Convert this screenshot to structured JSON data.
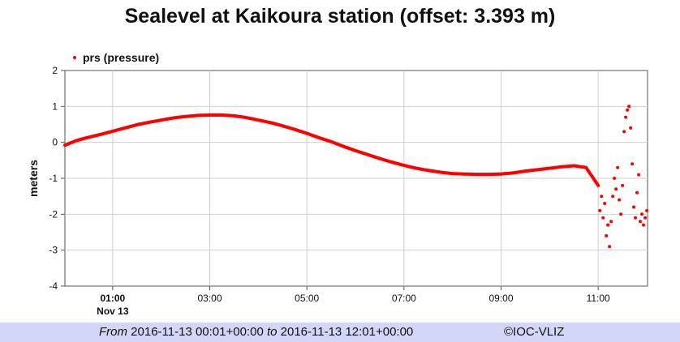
{
  "chart_data": {
    "type": "scatter",
    "title": "Sealevel at Kaikoura station (offset: 3.393 m)",
    "ylabel": "meters",
    "xlabel": "",
    "legend": {
      "label": "prs (pressure)",
      "position": "top-left"
    },
    "series_color": "#ff0000",
    "grid": true,
    "ylim": [
      -4,
      2
    ],
    "xlim": [
      "2016-11-13 00:01",
      "2016-11-13 12:01"
    ],
    "y_ticks": [
      "2",
      "1",
      "0",
      "-1",
      "-2",
      "-3",
      "-4"
    ],
    "x_ticks": [
      {
        "time": "01:00",
        "sub": "Nov 13",
        "bold": true
      },
      {
        "time": "03:00",
        "sub": "",
        "bold": false
      },
      {
        "time": "05:00",
        "sub": "",
        "bold": false
      },
      {
        "time": "07:00",
        "sub": "",
        "bold": false
      },
      {
        "time": "09:00",
        "sub": "",
        "bold": false
      },
      {
        "time": "11:00",
        "sub": "",
        "bold": false
      }
    ],
    "series": [
      {
        "name": "prs (pressure)",
        "x": [
          "00:01",
          "00:15",
          "00:30",
          "00:45",
          "01:00",
          "01:15",
          "01:30",
          "01:45",
          "02:00",
          "02:15",
          "02:30",
          "02:45",
          "03:00",
          "03:15",
          "03:30",
          "03:45",
          "04:00",
          "04:15",
          "04:30",
          "04:45",
          "05:00",
          "05:15",
          "05:30",
          "05:45",
          "06:00",
          "06:15",
          "06:30",
          "06:45",
          "07:00",
          "07:15",
          "07:30",
          "07:45",
          "08:00",
          "08:15",
          "08:30",
          "08:45",
          "09:00",
          "09:15",
          "09:30",
          "09:45",
          "10:00",
          "10:15",
          "10:30",
          "10:45",
          "11:00",
          "11:02",
          "11:04",
          "11:06",
          "11:08",
          "11:10",
          "11:12",
          "11:14",
          "11:16",
          "11:18",
          "11:20",
          "11:22",
          "11:24",
          "11:26",
          "11:28",
          "11:30",
          "11:32",
          "11:34",
          "11:36",
          "11:38",
          "11:40",
          "11:42",
          "11:44",
          "11:46",
          "11:48",
          "11:50",
          "11:52",
          "11:54",
          "11:56",
          "11:58",
          "12:00"
        ],
        "y": [
          -0.08,
          0.05,
          0.14,
          0.22,
          0.31,
          0.4,
          0.49,
          0.56,
          0.62,
          0.68,
          0.72,
          0.75,
          0.76,
          0.76,
          0.74,
          0.69,
          0.62,
          0.55,
          0.46,
          0.36,
          0.25,
          0.13,
          0.02,
          -0.11,
          -0.23,
          -0.34,
          -0.45,
          -0.55,
          -0.64,
          -0.72,
          -0.78,
          -0.83,
          -0.87,
          -0.88,
          -0.89,
          -0.89,
          -0.88,
          -0.85,
          -0.8,
          -0.76,
          -0.72,
          -0.68,
          -0.65,
          -0.7,
          -1.2,
          -1.9,
          -1.5,
          -2.1,
          -1.7,
          -2.6,
          -2.3,
          -2.9,
          -2.2,
          -1.5,
          -1.0,
          -1.3,
          -0.7,
          -1.6,
          -2.0,
          -1.2,
          0.3,
          0.7,
          0.9,
          1.0,
          0.4,
          -0.6,
          -1.8,
          -2.1,
          -1.4,
          -0.9,
          -2.2,
          -2.0,
          -2.3,
          -2.1,
          -1.9
        ]
      }
    ]
  },
  "footer": {
    "from_label": "From",
    "from_value": "2016-11-13 00:01+00:00",
    "to_label": "to",
    "to_value": "2016-11-13 12:01+00:00",
    "credit": "©IOC-VLIZ"
  }
}
